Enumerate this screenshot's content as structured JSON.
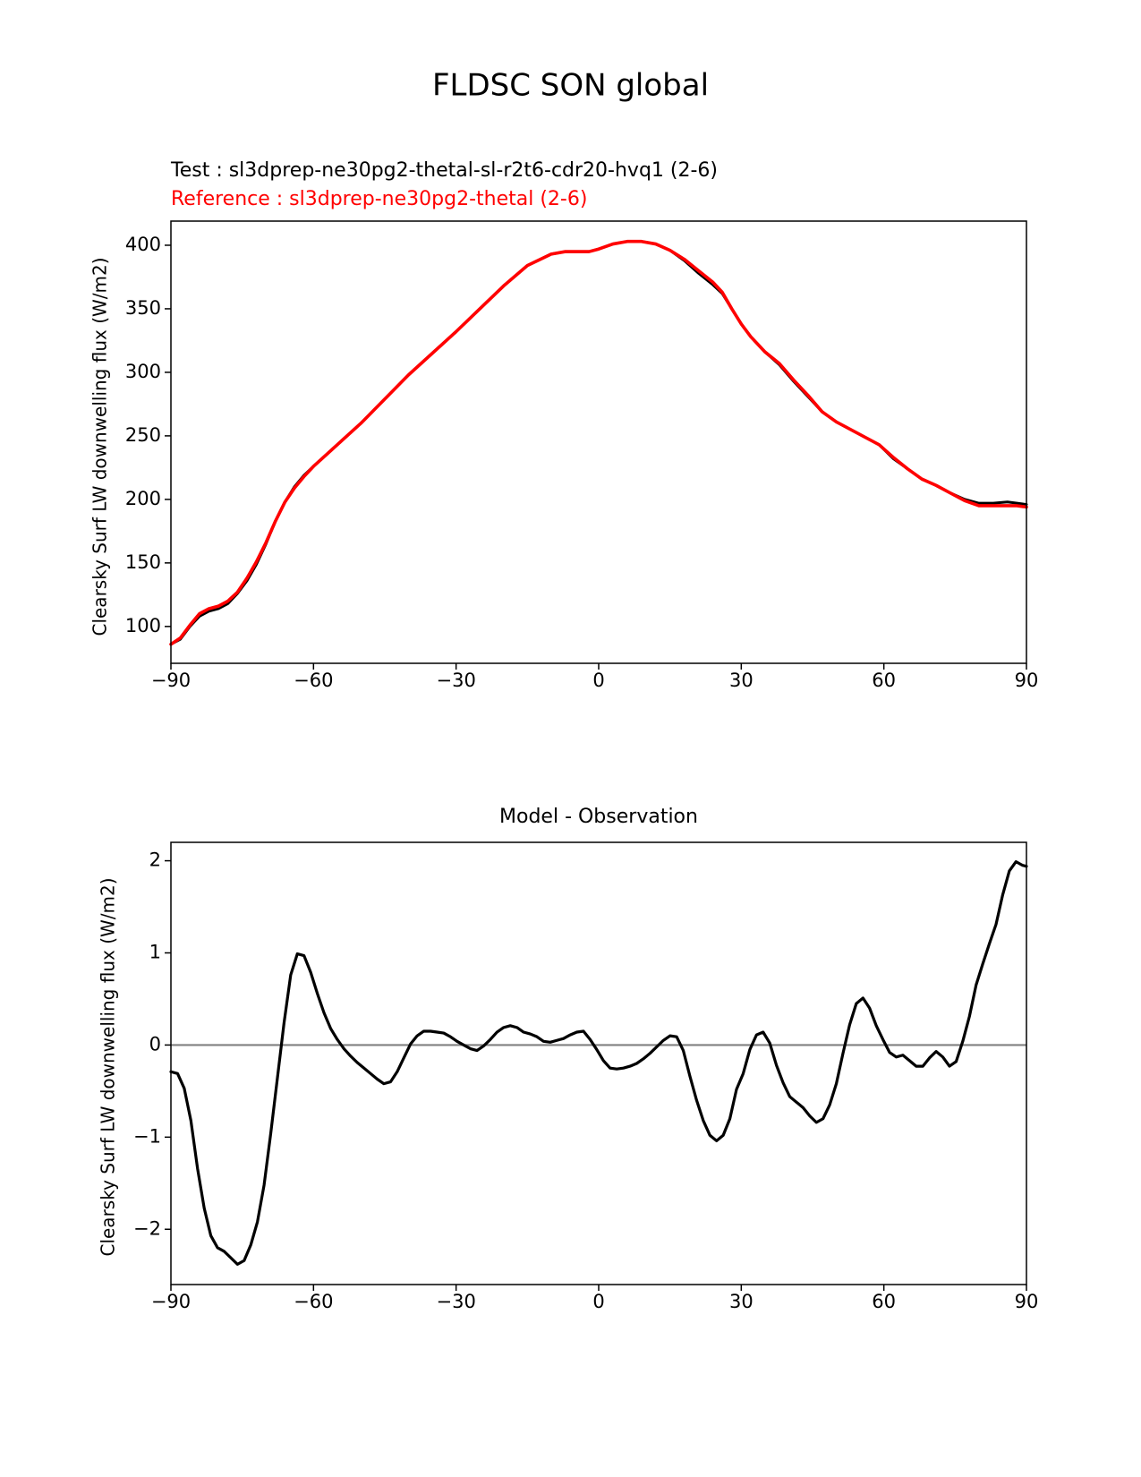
{
  "figure": {
    "title": "FLDSC SON global",
    "test_label": "Test : sl3dprep-ne30pg2-thetal-sl-r2t6-cdr20-hvq1 (2-6)",
    "reference_label": "Reference : sl3dprep-ne30pg2-thetal (2-6)"
  },
  "colors": {
    "test_line": "#000000",
    "reference_line": "#ff0000",
    "reference_text": "#ff0000",
    "zero_line": "#808080",
    "axes": "#000000"
  },
  "chart_data": [
    {
      "type": "line",
      "title": "",
      "xlabel": "",
      "ylabel": "Clearsky Surf LW downwelling flux (W/m2)",
      "xlim": [
        -90,
        90
      ],
      "ylim": [
        71,
        419
      ],
      "xticks": [
        -90,
        -60,
        -30,
        0,
        30,
        60,
        90
      ],
      "xtick_labels": [
        "−90",
        "−60",
        "−30",
        "0",
        "30",
        "60",
        "90"
      ],
      "yticks": [
        100,
        150,
        200,
        250,
        300,
        350,
        400
      ],
      "ytick_labels": [
        "100",
        "150",
        "200",
        "250",
        "300",
        "350",
        "400"
      ],
      "series": [
        {
          "name": "Test",
          "x": [
            -90,
            -88,
            -86,
            -84,
            -82,
            -80,
            -78,
            -76,
            -74,
            -72,
            -70,
            -68,
            -66,
            -64,
            -62,
            -60,
            -55,
            -50,
            -45,
            -40,
            -35,
            -30,
            -25,
            -20,
            -15,
            -10,
            -7,
            -4,
            -2,
            0,
            3,
            6,
            9,
            12,
            15,
            18,
            21,
            24,
            26,
            28,
            30,
            32,
            35,
            38,
            41,
            44,
            47,
            50,
            53,
            56,
            59,
            62,
            65,
            68,
            71,
            74,
            77,
            80,
            83,
            86,
            88,
            90
          ],
          "y": [
            86,
            90,
            100,
            108,
            112,
            114,
            118,
            126,
            136,
            149,
            165,
            183,
            198,
            210,
            219,
            226,
            243,
            260,
            279,
            298,
            315,
            332,
            350,
            368,
            384,
            393,
            395,
            395,
            395,
            397,
            401,
            403,
            403,
            401,
            396,
            388,
            378,
            369,
            362,
            350,
            338,
            328,
            316,
            306,
            293,
            281,
            269,
            261,
            255,
            249,
            243,
            232,
            224,
            216,
            211,
            205,
            200,
            197,
            197,
            198,
            197,
            196
          ]
        },
        {
          "name": "Reference",
          "x": [
            -90,
            -88,
            -86,
            -84,
            -82,
            -80,
            -78,
            -76,
            -74,
            -72,
            -70,
            -68,
            -66,
            -64,
            -62,
            -60,
            -55,
            -50,
            -45,
            -40,
            -35,
            -30,
            -25,
            -20,
            -15,
            -10,
            -7,
            -4,
            -2,
            0,
            3,
            6,
            9,
            12,
            15,
            18,
            21,
            24,
            26,
            28,
            30,
            32,
            35,
            38,
            41,
            44,
            47,
            50,
            53,
            56,
            59,
            62,
            65,
            68,
            71,
            74,
            77,
            80,
            83,
            86,
            88,
            90
          ],
          "y": [
            86,
            91,
            101,
            110,
            114,
            116,
            120,
            127,
            138,
            151,
            166,
            183,
            198,
            209,
            218,
            226,
            243,
            260,
            279,
            298,
            315,
            332,
            350,
            368,
            384,
            393,
            395,
            395,
            395,
            397,
            401,
            403,
            403,
            401,
            396,
            389,
            380,
            371,
            363,
            350,
            338,
            328,
            316,
            307,
            294,
            282,
            269,
            261,
            255,
            249,
            243,
            233,
            224,
            216,
            211,
            205,
            199,
            195,
            195,
            195,
            195,
            194
          ]
        }
      ]
    },
    {
      "type": "line",
      "title": "Model - Observation",
      "xlabel": "",
      "ylabel": "Clearsky Surf LW downwelling flux (W/m2)",
      "xlim": [
        -90,
        90
      ],
      "ylim": [
        -2.6,
        2.2
      ],
      "xticks": [
        -90,
        -60,
        -30,
        0,
        30,
        60,
        90
      ],
      "xtick_labels": [
        "−90",
        "−60",
        "−30",
        "0",
        "30",
        "60",
        "90"
      ],
      "yticks": [
        -2,
        -1,
        0,
        1,
        2
      ],
      "ytick_labels": [
        "−2",
        "−1",
        "0",
        "1",
        "2"
      ],
      "zero_line": 0,
      "series": [
        {
          "name": "Difference",
          "x": [
            -90,
            -88.6,
            -87.2,
            -85.8,
            -84.4,
            -83,
            -81.6,
            -80.2,
            -78.8,
            -77.4,
            -76,
            -74.6,
            -73.2,
            -71.8,
            -70.4,
            -69,
            -67.6,
            -66.2,
            -64.8,
            -63.4,
            -62,
            -60.6,
            -59.2,
            -57.8,
            -56.4,
            -55,
            -53.6,
            -52.2,
            -50.8,
            -49.4,
            -48,
            -46.6,
            -45.2,
            -43.8,
            -42.4,
            -41,
            -39.6,
            -38.2,
            -36.8,
            -35.4,
            -34,
            -32.6,
            -31.2,
            -29.8,
            -28.4,
            -27,
            -25.6,
            -24.2,
            -22.8,
            -21.4,
            -20,
            -18.6,
            -17.2,
            -15.8,
            -14.4,
            -13,
            -11.6,
            -10.2,
            -8.8,
            -7.4,
            -6,
            -4.6,
            -3.2,
            -1.8,
            -0.4,
            1,
            2.4,
            3.8,
            5.2,
            6.6,
            8,
            9.4,
            10.8,
            12.2,
            13.6,
            15,
            16.4,
            17.8,
            19.2,
            20.6,
            22,
            23.4,
            24.8,
            26.2,
            27.6,
            29,
            30.4,
            31.8,
            33.2,
            34.6,
            36,
            37.4,
            38.8,
            40.2,
            41.6,
            43,
            44.4,
            45.8,
            47.2,
            48.6,
            50,
            51.4,
            52.8,
            54.2,
            55.6,
            57,
            58.4,
            59.8,
            61.2,
            62.6,
            64,
            65.4,
            66.8,
            68.2,
            69.6,
            71,
            72.4,
            73.8,
            75.2,
            76.6,
            78,
            79.4,
            80.8,
            82.2,
            83.6,
            85,
            86.4,
            87.8,
            89.2,
            90
          ],
          "y": [
            -0.29,
            -0.31,
            -0.47,
            -0.82,
            -1.34,
            -1.77,
            -2.07,
            -2.2,
            -2.24,
            -2.31,
            -2.38,
            -2.34,
            -2.17,
            -1.92,
            -1.52,
            -0.96,
            -0.36,
            0.24,
            0.76,
            0.99,
            0.97,
            0.79,
            0.56,
            0.35,
            0.18,
            0.06,
            -0.04,
            -0.12,
            -0.19,
            -0.25,
            -0.31,
            -0.37,
            -0.42,
            -0.4,
            -0.29,
            -0.14,
            0.01,
            0.1,
            0.15,
            0.15,
            0.14,
            0.13,
            0.09,
            0.04,
            0,
            -0.04,
            -0.06,
            -0.01,
            0.06,
            0.14,
            0.19,
            0.21,
            0.19,
            0.14,
            0.12,
            0.09,
            0.04,
            0.03,
            0.05,
            0.07,
            0.11,
            0.14,
            0.15,
            0.06,
            -0.05,
            -0.17,
            -0.25,
            -0.26,
            -0.25,
            -0.23,
            -0.2,
            -0.15,
            -0.09,
            -0.02,
            0.05,
            0.1,
            0.09,
            -0.06,
            -0.34,
            -0.6,
            -0.82,
            -0.98,
            -1.04,
            -0.98,
            -0.8,
            -0.48,
            -0.31,
            -0.05,
            0.11,
            0.14,
            0.02,
            -0.22,
            -0.41,
            -0.56,
            -0.62,
            -0.68,
            -0.77,
            -0.84,
            -0.8,
            -0.65,
            -0.42,
            -0.09,
            0.22,
            0.45,
            0.51,
            0.4,
            0.21,
            0.06,
            -0.08,
            -0.13,
            -0.11,
            -0.17,
            -0.23,
            -0.23,
            -0.14,
            -0.07,
            -0.13,
            -0.23,
            -0.18,
            0.04,
            0.31,
            0.65,
            0.88,
            1.1,
            1.31,
            1.63,
            1.89,
            1.99,
            1.95,
            1.94
          ]
        }
      ]
    }
  ]
}
